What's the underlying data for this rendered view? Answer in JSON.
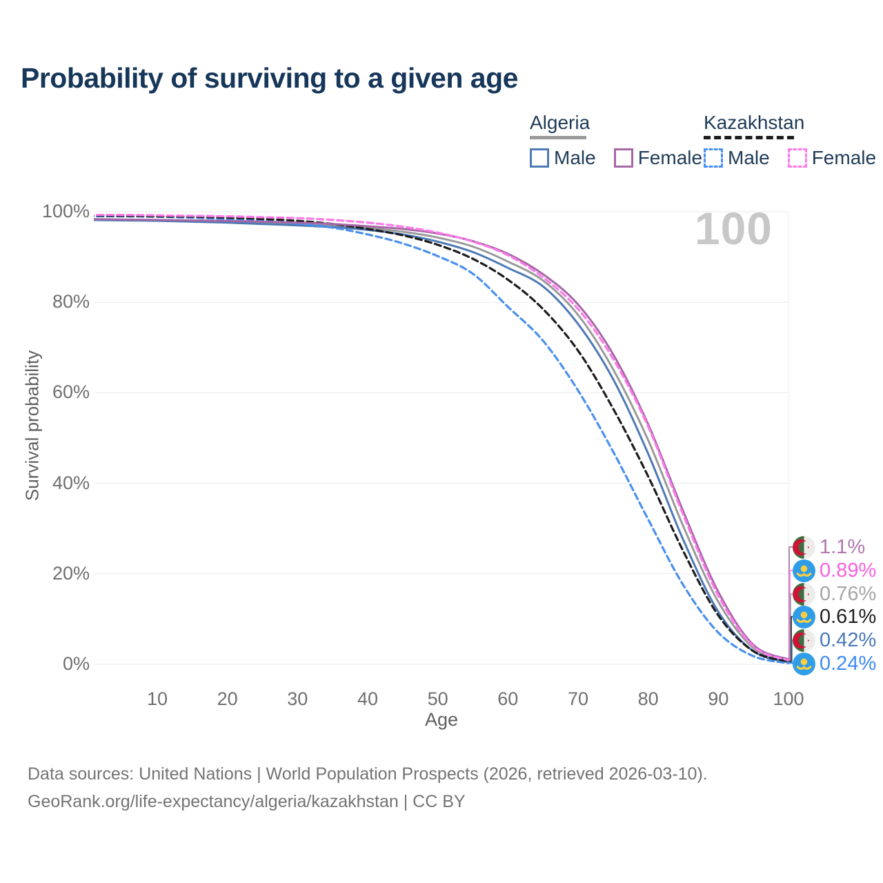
{
  "title": "Probability of surviving to a given age",
  "watermark_age": "100",
  "legend": {
    "groups": [
      {
        "country": "Algeria",
        "line_style": "solid",
        "line_color": "#9a9a9a",
        "items": [
          {
            "label": "Male",
            "color": "#4d79b5",
            "dashed": false
          },
          {
            "label": "Female",
            "color": "#a667a7",
            "dashed": false
          }
        ]
      },
      {
        "country": "Kazakhstan",
        "line_style": "dashed",
        "line_color": "#1c1c1c",
        "items": [
          {
            "label": "Male",
            "color": "#4a90ee",
            "dashed": true
          },
          {
            "label": "Female",
            "color": "#fc7ae8",
            "dashed": true
          }
        ]
      }
    ]
  },
  "chart_data": {
    "type": "line",
    "title": "Probability of surviving to a given age",
    "xlabel": "Age",
    "ylabel": "Survival probability",
    "xlim": [
      0,
      100
    ],
    "ylim": [
      0,
      100
    ],
    "grid": "horizontal",
    "legend_position": "top-right",
    "x": [
      0,
      5,
      10,
      15,
      20,
      25,
      30,
      35,
      40,
      45,
      50,
      55,
      60,
      65,
      70,
      75,
      80,
      85,
      90,
      95,
      100
    ],
    "x_ticks": [
      {
        "label": "10",
        "value": 10
      },
      {
        "label": "20",
        "value": 20
      },
      {
        "label": "30",
        "value": 30
      },
      {
        "label": "40",
        "value": 40
      },
      {
        "label": "50",
        "value": 50
      },
      {
        "label": "60",
        "value": 60
      },
      {
        "label": "70",
        "value": 70
      },
      {
        "label": "80",
        "value": 80
      },
      {
        "label": "90",
        "value": 90
      },
      {
        "label": "100",
        "value": 100
      }
    ],
    "y_ticks": [
      {
        "label": "100%",
        "value": 100
      },
      {
        "label": "80%",
        "value": 80
      },
      {
        "label": "60%",
        "value": 60
      },
      {
        "label": "40%",
        "value": 40
      },
      {
        "label": "20%",
        "value": 20
      },
      {
        "label": "0%",
        "value": 0
      }
    ],
    "series": [
      {
        "id": "algeria-both",
        "name": "Algeria (both sexes)",
        "country": "Algeria",
        "sex": "Both",
        "color": "#9a9a9a",
        "dashed": false,
        "end_label": "0.76%",
        "values": [
          98.3,
          98.2,
          98.1,
          98.0,
          97.8,
          97.6,
          97.3,
          96.9,
          96.4,
          95.6,
          94.3,
          92.3,
          89.0,
          84.8,
          77.2,
          65.2,
          49.5,
          30.5,
          13.8,
          3.6,
          0.76
        ]
      },
      {
        "id": "algeria-male",
        "name": "Algeria Male",
        "country": "Algeria",
        "sex": "Male",
        "color": "#4d79b5",
        "dashed": false,
        "end_label": "0.42%",
        "values": [
          98.2,
          98.1,
          98.0,
          97.8,
          97.6,
          97.3,
          97.0,
          96.6,
          96.0,
          95.0,
          93.4,
          91.1,
          87.6,
          83.5,
          75.2,
          63.0,
          46.5,
          27.5,
          11.6,
          2.9,
          0.42
        ]
      },
      {
        "id": "kazakhstan-male",
        "name": "Kazakhstan Male",
        "country": "Kazakhstan",
        "sex": "Male",
        "color": "#4a90ee",
        "dashed": true,
        "end_label": "0.24%",
        "values": [
          99.0,
          99.0,
          98.9,
          98.7,
          98.4,
          98.0,
          97.4,
          96.5,
          95.0,
          93.0,
          90.2,
          86.3,
          79.0,
          71.5,
          60.5,
          47.0,
          32.0,
          17.5,
          7.0,
          1.8,
          0.24
        ]
      },
      {
        "id": "kazakhstan-both",
        "name": "Kazakhstan (both sexes)",
        "country": "Kazakhstan",
        "sex": "Both",
        "color": "#1c1c1c",
        "dashed": true,
        "end_label": "0.61%",
        "values": [
          99.2,
          99.1,
          99.0,
          98.9,
          98.7,
          98.4,
          98.0,
          97.3,
          96.2,
          94.8,
          92.7,
          89.6,
          85.0,
          78.5,
          69.3,
          56.5,
          41.5,
          25.0,
          10.8,
          2.9,
          0.61
        ]
      },
      {
        "id": "algeria-female",
        "name": "Algeria Female",
        "country": "Algeria",
        "sex": "Female",
        "color": "#a667a7",
        "dashed": false,
        "end_label": "1.1%",
        "values": [
          98.4,
          98.3,
          98.2,
          98.1,
          98.0,
          97.8,
          97.6,
          97.3,
          96.8,
          96.2,
          95.2,
          93.5,
          90.7,
          86.2,
          79.5,
          68.5,
          53.0,
          33.8,
          16.0,
          4.3,
          1.1
        ]
      },
      {
        "id": "kazakhstan-female",
        "name": "Kazakhstan Female",
        "country": "Kazakhstan",
        "sex": "Female",
        "color": "#fc7ae8",
        "dashed": true,
        "end_label": "0.89%",
        "values": [
          99.3,
          99.3,
          99.2,
          99.1,
          99.0,
          98.8,
          98.6,
          98.2,
          97.6,
          96.7,
          95.4,
          93.4,
          90.4,
          85.5,
          78.5,
          67.5,
          52.5,
          33.0,
          15.2,
          4.0,
          0.89
        ]
      }
    ]
  },
  "end_labels": [
    {
      "series": "algeria-female",
      "value": "1.1%",
      "color": "#b077ae",
      "flag": "algeria"
    },
    {
      "series": "kazakhstan-female",
      "value": "0.89%",
      "color": "#fb5fdc",
      "flag": "kazakhstan"
    },
    {
      "series": "algeria-both",
      "value": "0.76%",
      "color": "#a6a6a6",
      "flag": "algeria"
    },
    {
      "series": "kazakhstan-both",
      "value": "0.61%",
      "color": "#1f1f1f",
      "flag": "kazakhstan"
    },
    {
      "series": "algeria-male",
      "value": "0.42%",
      "color": "#4a78b8",
      "flag": "algeria"
    },
    {
      "series": "kazakhstan-male",
      "value": "0.24%",
      "color": "#3d8bf2",
      "flag": "kazakhstan"
    }
  ],
  "flags": {
    "algeria": {
      "green": "#3f6d3f",
      "white": "#ececea",
      "red": "#d21034"
    },
    "kazakhstan": {
      "blue": "#2f9de8",
      "gold": "#ffcf3f"
    }
  },
  "colors": {
    "title": "#17375a",
    "gridline": "#e9e9e9",
    "tick_text": "#6f6f6f",
    "watermark": "#c8c8c8",
    "footer": "#737373"
  },
  "footer": {
    "line1": "Data sources: United Nations | World Population Prospects (2026, retrieved 2026-03-10).",
    "line2": "GeoRank.org/life-expectancy/algeria/kazakhstan | CC BY"
  }
}
